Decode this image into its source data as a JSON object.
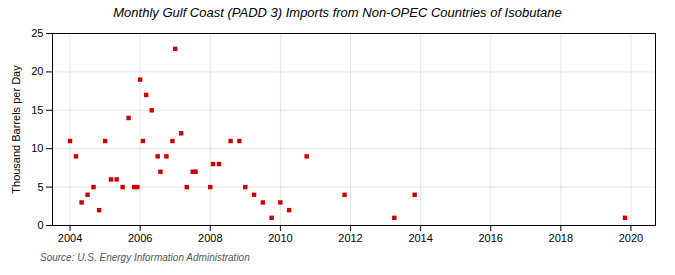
{
  "chart_data": {
    "type": "scatter",
    "title": "Monthly Gulf Coast (PADD 3) Imports from Non-OPEC Countries of Isobutane",
    "ylabel": "Thousand Barrels per Day",
    "source": "Source: U.S. Energy Information Administration",
    "color": "#cc0000",
    "marker": "square",
    "grid": true,
    "xlim": [
      2003.5,
      2020.7
    ],
    "ylim": [
      0,
      25
    ],
    "xticks": [
      2004,
      2006,
      2008,
      2010,
      2012,
      2014,
      2016,
      2018,
      2020
    ],
    "yticks": [
      0,
      5,
      10,
      15,
      20,
      25
    ],
    "x": [
      2004.0,
      2004.17,
      2004.33,
      2004.5,
      2004.67,
      2004.83,
      2005.0,
      2005.17,
      2005.33,
      2005.5,
      2005.67,
      2005.83,
      2005.92,
      2006.0,
      2006.08,
      2006.17,
      2006.33,
      2006.5,
      2006.58,
      2006.75,
      2006.92,
      2007.0,
      2007.17,
      2007.33,
      2007.5,
      2007.58,
      2008.0,
      2008.08,
      2008.25,
      2008.58,
      2008.83,
      2009.0,
      2009.25,
      2009.5,
      2009.75,
      2010.0,
      2010.25,
      2010.75,
      2011.83,
      2013.25,
      2013.83,
      2019.83
    ],
    "values": [
      11,
      9,
      3,
      4,
      5,
      2,
      11,
      6,
      6,
      5,
      14,
      5,
      5,
      19,
      11,
      17,
      15,
      9,
      7,
      9,
      11,
      23,
      12,
      5,
      7,
      7,
      5,
      8,
      8,
      11,
      11,
      5,
      4,
      3,
      1,
      3,
      2,
      9,
      4,
      1,
      4,
      1
    ]
  }
}
